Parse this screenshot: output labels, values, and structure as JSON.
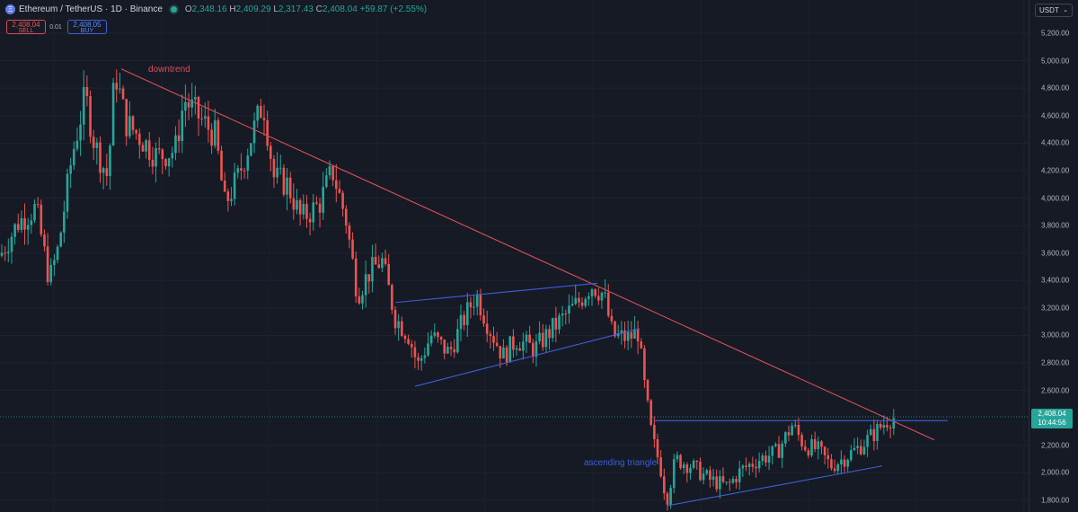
{
  "header": {
    "symbol_icon": "ethereum-icon",
    "title": "Ethereum / TetherUS · 1D · Binance",
    "ohlc": [
      {
        "key": "O",
        "value": "2,348.16"
      },
      {
        "key": "H",
        "value": "2,409.29"
      },
      {
        "key": "L",
        "value": "2,317.43"
      },
      {
        "key": "C",
        "value": "2,408.04"
      }
    ],
    "change": "+59.87 (+2.55%)"
  },
  "trade": {
    "sell_price": "2,408.04",
    "sell_label": "SELL",
    "spread": "0.01",
    "buy_price": "2,408.05",
    "buy_label": "BUY"
  },
  "currency": "USDT",
  "current_price": {
    "price": "2,408.04",
    "countdown": "10:44:56"
  },
  "colors": {
    "background": "#161a25",
    "up": "#26a69a",
    "down": "#ef5350",
    "downtrend_line": "#d94f5c",
    "pattern_line": "#3d5fd8"
  },
  "chart_data": {
    "type": "candlestick",
    "ylim": [
      1750,
      5300
    ],
    "y_ticks": [
      "5,200.00",
      "5,000.00",
      "4,800.00",
      "4,600.00",
      "4,400.00",
      "4,200.00",
      "4,000.00",
      "3,800.00",
      "3,600.00",
      "3,400.00",
      "3,200.00",
      "3,000.00",
      "2,800.00",
      "2,600.00",
      "2,200.00",
      "2,000.00",
      "1,800.00"
    ],
    "price_path": [
      [
        0,
        3580
      ],
      [
        10,
        3700
      ],
      [
        20,
        3820
      ],
      [
        40,
        3930
      ],
      [
        55,
        3400
      ],
      [
        65,
        3640
      ],
      [
        80,
        4300
      ],
      [
        95,
        4750
      ],
      [
        105,
        4400
      ],
      [
        120,
        4150
      ],
      [
        128,
        4930
      ],
      [
        140,
        4550
      ],
      [
        155,
        4450
      ],
      [
        175,
        4300
      ],
      [
        195,
        4350
      ],
      [
        205,
        4720
      ],
      [
        220,
        4600
      ],
      [
        240,
        4450
      ],
      [
        250,
        3950
      ],
      [
        265,
        4150
      ],
      [
        280,
        4450
      ],
      [
        293,
        4700
      ],
      [
        305,
        4150
      ],
      [
        320,
        4100
      ],
      [
        335,
        3850
      ],
      [
        355,
        3950
      ],
      [
        370,
        4200
      ],
      [
        385,
        3850
      ],
      [
        398,
        3300
      ],
      [
        410,
        3450
      ],
      [
        425,
        3550
      ],
      [
        440,
        3130
      ],
      [
        455,
        3000
      ],
      [
        465,
        2780
      ],
      [
        480,
        3000
      ],
      [
        500,
        2870
      ],
      [
        515,
        3100
      ],
      [
        530,
        3300
      ],
      [
        545,
        3050
      ],
      [
        560,
        2850
      ],
      [
        575,
        2970
      ],
      [
        595,
        2900
      ],
      [
        615,
        3050
      ],
      [
        630,
        3150
      ],
      [
        645,
        3250
      ],
      [
        658,
        3370
      ],
      [
        672,
        3300
      ],
      [
        682,
        3000
      ],
      [
        700,
        2980
      ],
      [
        710,
        3030
      ],
      [
        718,
        2600
      ],
      [
        726,
        2250
      ],
      [
        735,
        2050
      ],
      [
        742,
        1800
      ],
      [
        752,
        2100
      ],
      [
        770,
        2050
      ],
      [
        790,
        1950
      ],
      [
        810,
        1900
      ],
      [
        825,
        2020
      ],
      [
        845,
        2100
      ],
      [
        865,
        2150
      ],
      [
        882,
        2350
      ],
      [
        895,
        2200
      ],
      [
        910,
        2170
      ],
      [
        925,
        2050
      ],
      [
        940,
        2110
      ],
      [
        955,
        2180
      ],
      [
        975,
        2300
      ],
      [
        987,
        2380
      ],
      [
        997,
        2408
      ]
    ],
    "annotations": {
      "downtrend": {
        "label": "downtrend",
        "points": [
          [
            135,
            4940
          ],
          [
            1040,
            2240
          ]
        ]
      },
      "channel": {
        "upper": [
          [
            440,
            3240
          ],
          [
            665,
            3380
          ]
        ],
        "lower": [
          [
            462,
            2630
          ],
          [
            712,
            3050
          ]
        ]
      },
      "ascending_triangle": {
        "label": "ascending triangle",
        "resistance": [
          [
            728,
            2380
          ],
          [
            1055,
            2380
          ]
        ],
        "support": [
          [
            742,
            1760
          ],
          [
            982,
            2050
          ]
        ]
      }
    }
  }
}
